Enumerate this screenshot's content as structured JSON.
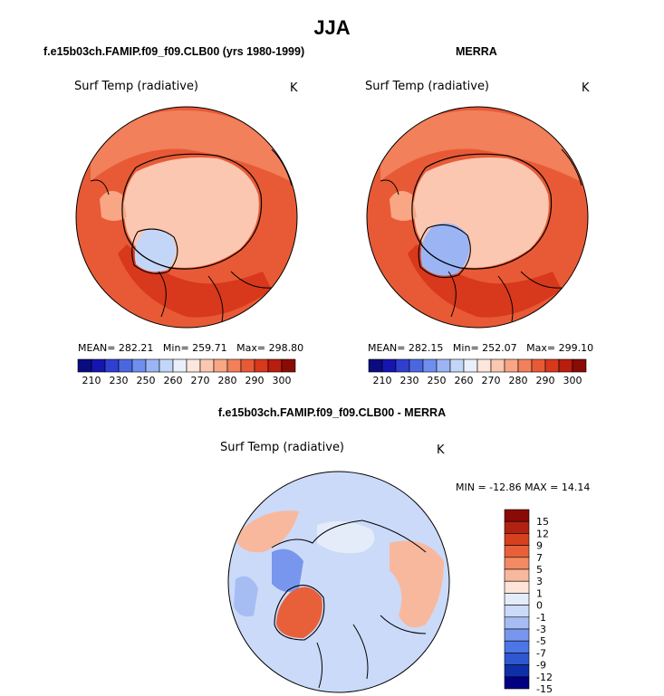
{
  "figure": {
    "suptitle": "JJA"
  },
  "colors": {
    "abs_scale": [
      "#0b0b80",
      "#1515b0",
      "#2f3fd0",
      "#4b67e0",
      "#6f8fee",
      "#9bb5f4",
      "#c4d6f8",
      "#eaf0fb",
      "#fde6dc",
      "#fbc7b1",
      "#f8a684",
      "#f2805a",
      "#e85a36",
      "#d8381c",
      "#b81d0e",
      "#8a0b06"
    ],
    "diff_scale": [
      "#000080",
      "#0e2fa8",
      "#2e57d0",
      "#4c76e6",
      "#7896ee",
      "#a6bdf4",
      "#cbdaf8",
      "#e4ecfa",
      "#fde4d8",
      "#f8b89d",
      "#f28a64",
      "#e8603a",
      "#d7401e",
      "#b22210",
      "#8a0b06"
    ]
  },
  "chart_data": [
    {
      "type": "heatmap",
      "projection": "polar-stereographic-north",
      "title": "f.e15b03ch.FAMIP.f09_f09.CLB00 (yrs 1980-1999)",
      "variable": "Surf Temp (radiative)",
      "units": "K",
      "stats": {
        "mean_label": "MEAN=",
        "mean": "282.21",
        "min_label": "Min=",
        "min": "259.71",
        "max_label": "Max=",
        "max": "298.80"
      },
      "colorbar_ticks": [
        "210",
        "230",
        "250",
        "260",
        "270",
        "280",
        "290",
        "300"
      ],
      "colorbar_levels": 16
    },
    {
      "type": "heatmap",
      "projection": "polar-stereographic-north",
      "title": "MERRA",
      "variable": "Surf Temp (radiative)",
      "units": "K",
      "stats": {
        "mean_label": "MEAN=",
        "mean": "282.15",
        "min_label": "Min=",
        "min": "252.07",
        "max_label": "Max=",
        "max": "299.10"
      },
      "colorbar_ticks": [
        "210",
        "230",
        "250",
        "260",
        "270",
        "280",
        "290",
        "300"
      ],
      "colorbar_levels": 16
    },
    {
      "type": "heatmap",
      "projection": "polar-stereographic-north",
      "title": "f.e15b03ch.FAMIP.f09_f09.CLB00 - MERRA",
      "variable": "Surf Temp (radiative)",
      "units": "K",
      "minmax_label": "MIN = -12.86 MAX =  14.14",
      "colorbar_ticks": [
        "15",
        "12",
        "9",
        "7",
        "5",
        "3",
        "1",
        "0",
        "-1",
        "-3",
        "-5",
        "-7",
        "-9",
        "-12",
        "-15"
      ]
    }
  ]
}
